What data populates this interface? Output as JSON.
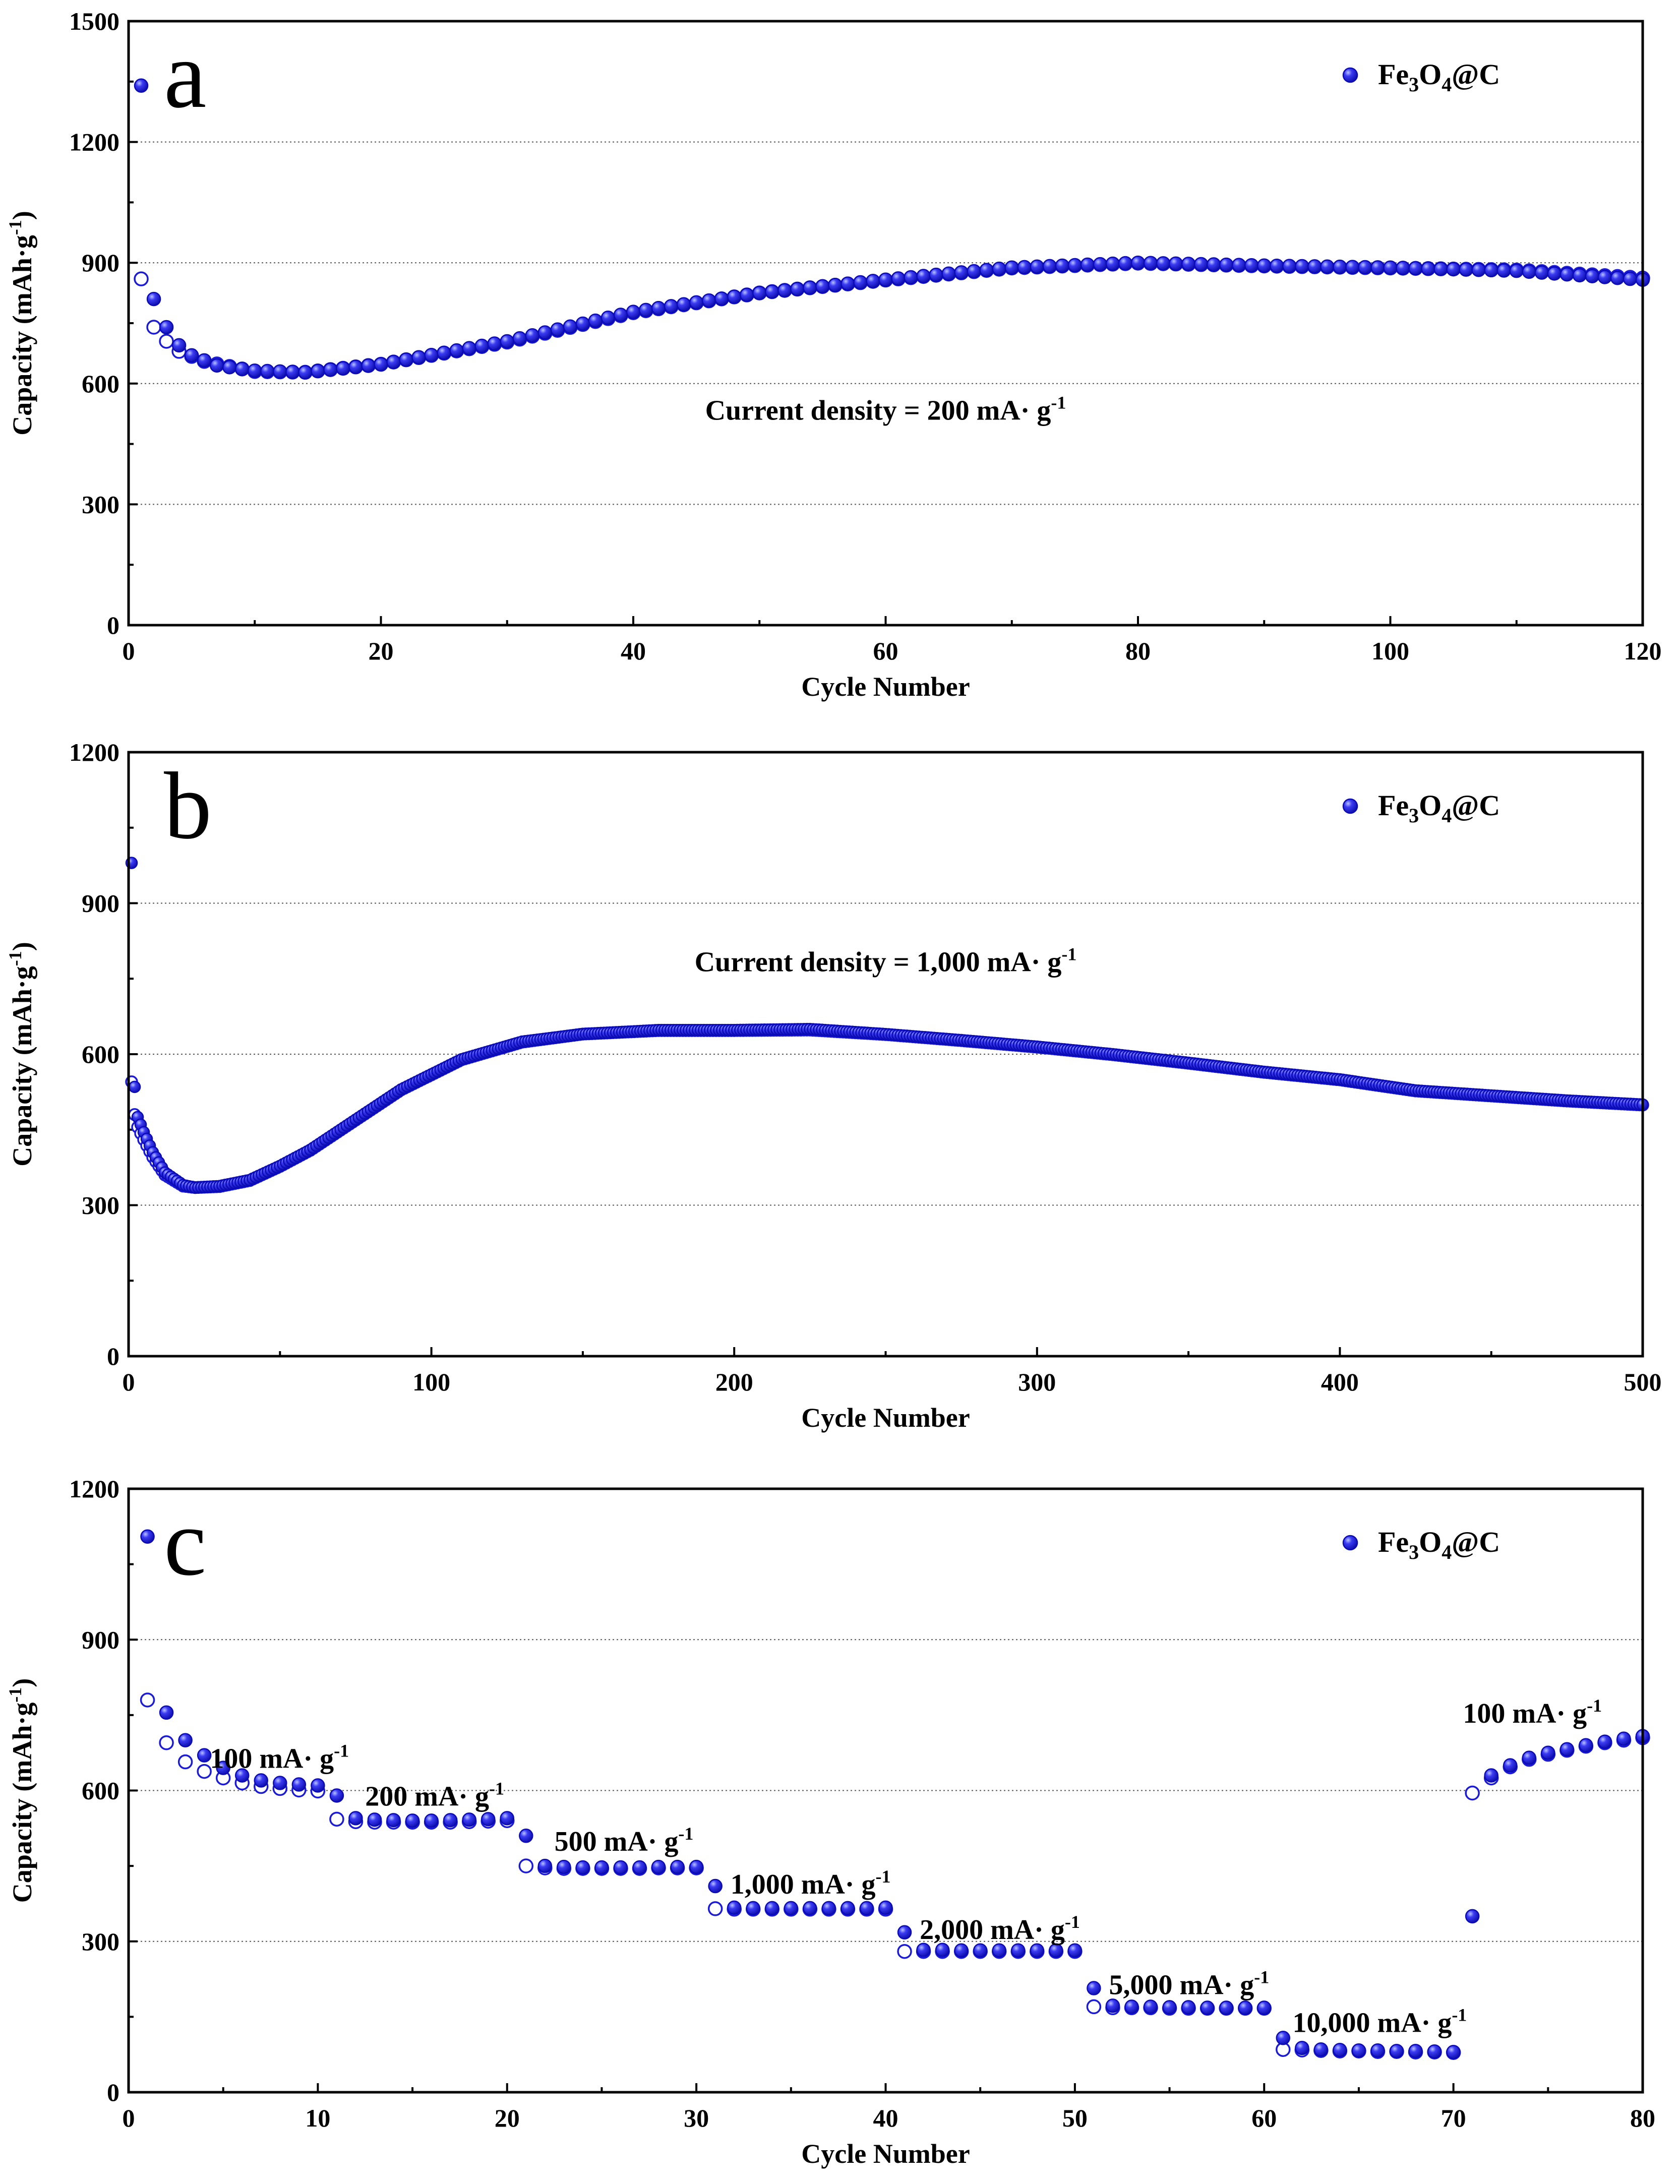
{
  "colors": {
    "marker_fill": "#2a2ae8",
    "marker_edge": "#0b0bb8",
    "marker_highlight": "#a9b6ff",
    "frame": "#000000",
    "grid": "#555555"
  },
  "chart_data": [
    {
      "type": "scatter",
      "panel_label": "a",
      "xlabel": "Cycle Number",
      "ylabel": "Capacity (mAh·g",
      "ylabel_exponent": "-1",
      "ylabel_close": ")",
      "xlim": [
        0,
        120
      ],
      "ylim": [
        0,
        1500
      ],
      "xticks": [
        0,
        20,
        40,
        60,
        80,
        100,
        120
      ],
      "xtick_labels": [
        "0",
        "20",
        "40",
        "60",
        "80",
        "100",
        "120"
      ],
      "yticks": [
        0,
        300,
        600,
        900,
        1200,
        1500
      ],
      "ytick_labels": [
        "0",
        "300",
        "600",
        "900",
        "1200",
        "1500"
      ],
      "grid_lines_y": [
        300,
        600,
        900,
        1200
      ],
      "legend": {
        "label": "Fe3O4@C",
        "parts": [
          "Fe",
          "3",
          "O",
          "4",
          "@C"
        ],
        "position": "top-right"
      },
      "annotations": [
        {
          "text": "Current density = 200 mA· g",
          "superscript": "-1",
          "at": [
            60,
            510
          ]
        }
      ],
      "series_generator": {
        "n_cycles": 120,
        "first_discharge": 1340,
        "first_charge": 860,
        "discharge_anchors": [
          [
            2,
            810
          ],
          [
            3,
            740
          ],
          [
            4,
            695
          ],
          [
            5,
            670
          ],
          [
            7,
            645
          ],
          [
            10,
            632
          ],
          [
            14,
            628
          ],
          [
            20,
            648
          ],
          [
            30,
            705
          ],
          [
            40,
            778
          ],
          [
            50,
            825
          ],
          [
            60,
            858
          ],
          [
            70,
            888
          ],
          [
            80,
            900
          ],
          [
            90,
            893
          ],
          [
            100,
            888
          ],
          [
            110,
            880
          ],
          [
            120,
            858
          ]
        ],
        "charge_anchors": [
          [
            2,
            740
          ],
          [
            3,
            705
          ],
          [
            4,
            680
          ],
          [
            6,
            655
          ],
          [
            10,
            630
          ],
          [
            14,
            628
          ],
          [
            20,
            648
          ],
          [
            30,
            703
          ],
          [
            40,
            776
          ],
          [
            50,
            825
          ],
          [
            60,
            857
          ],
          [
            70,
            887
          ],
          [
            80,
            899
          ],
          [
            90,
            892
          ],
          [
            100,
            887
          ],
          [
            110,
            882
          ],
          [
            120,
            862
          ]
        ]
      }
    },
    {
      "type": "scatter",
      "panel_label": "b",
      "xlabel": "Cycle Number",
      "ylabel": "Capacity (mAh·g",
      "ylabel_exponent": "-1",
      "ylabel_close": ")",
      "xlim": [
        0,
        500
      ],
      "ylim": [
        0,
        1200
      ],
      "xticks": [
        0,
        100,
        200,
        300,
        400,
        500
      ],
      "xtick_labels": [
        "0",
        "100",
        "200",
        "300",
        "400",
        "500"
      ],
      "yticks": [
        0,
        300,
        600,
        900,
        1200
      ],
      "ytick_labels": [
        "0",
        "300",
        "600",
        "900",
        "1200"
      ],
      "grid_lines_y": [
        300,
        600,
        900
      ],
      "legend": {
        "label": "Fe3O4@C",
        "parts": [
          "Fe",
          "3",
          "O",
          "4",
          "@C"
        ],
        "position": "top-right"
      },
      "annotations": [
        {
          "text": "Current density = 1,000 mA· g",
          "superscript": "-1",
          "at": [
            250,
            765
          ]
        }
      ],
      "series_generator": {
        "n_cycles": 500,
        "first_discharge": 980,
        "first_charge": 545,
        "discharge_anchors": [
          [
            2,
            535
          ],
          [
            3,
            475
          ],
          [
            5,
            445
          ],
          [
            8,
            405
          ],
          [
            12,
            365
          ],
          [
            18,
            340
          ],
          [
            22,
            335
          ],
          [
            30,
            338
          ],
          [
            40,
            350
          ],
          [
            50,
            378
          ],
          [
            60,
            410
          ],
          [
            75,
            470
          ],
          [
            90,
            530
          ],
          [
            110,
            590
          ],
          [
            130,
            625
          ],
          [
            150,
            640
          ],
          [
            175,
            648
          ],
          [
            200,
            648
          ],
          [
            225,
            650
          ],
          [
            250,
            640
          ],
          [
            275,
            628
          ],
          [
            300,
            615
          ],
          [
            325,
            600
          ],
          [
            350,
            583
          ],
          [
            375,
            565
          ],
          [
            400,
            550
          ],
          [
            425,
            528
          ],
          [
            450,
            518
          ],
          [
            475,
            508
          ],
          [
            500,
            500
          ]
        ],
        "charge_anchors": [
          [
            2,
            480
          ],
          [
            3,
            455
          ],
          [
            5,
            430
          ],
          [
            8,
            395
          ],
          [
            12,
            360
          ],
          [
            18,
            338
          ],
          [
            22,
            335
          ],
          [
            30,
            337
          ],
          [
            40,
            349
          ],
          [
            50,
            377
          ],
          [
            60,
            409
          ],
          [
            75,
            469
          ],
          [
            90,
            529
          ],
          [
            110,
            589
          ],
          [
            130,
            624
          ],
          [
            150,
            640
          ],
          [
            175,
            647
          ],
          [
            200,
            647
          ],
          [
            225,
            648
          ],
          [
            250,
            639
          ],
          [
            275,
            627
          ],
          [
            300,
            614
          ],
          [
            325,
            599
          ],
          [
            350,
            582
          ],
          [
            375,
            564
          ],
          [
            400,
            549
          ],
          [
            425,
            527
          ],
          [
            450,
            517
          ],
          [
            475,
            507
          ],
          [
            500,
            499
          ]
        ]
      }
    },
    {
      "type": "scatter",
      "panel_label": "c",
      "xlabel": "Cycle Number",
      "ylabel": "Capacity (mAh·g",
      "ylabel_exponent": "-1",
      "ylabel_close": ")",
      "xlim": [
        0,
        80
      ],
      "ylim": [
        0,
        1200
      ],
      "xticks": [
        0,
        10,
        20,
        30,
        40,
        50,
        60,
        70,
        80
      ],
      "xtick_labels": [
        "0",
        "10",
        "20",
        "30",
        "40",
        "50",
        "60",
        "70",
        "80"
      ],
      "yticks": [
        0,
        300,
        600,
        900,
        1200
      ],
      "ytick_labels": [
        "0",
        "300",
        "600",
        "900",
        "1200"
      ],
      "grid_lines_y": [
        300,
        600,
        900
      ],
      "legend": {
        "label": "Fe3O4@C",
        "parts": [
          "Fe",
          "3",
          "O",
          "4",
          "@C"
        ],
        "position": "top-right"
      },
      "annotations": [
        {
          "text": "100 mA· g",
          "superscript": "-1",
          "at": [
            4.3,
            645
          ]
        },
        {
          "text": "200 mA· g",
          "superscript": "-1",
          "at": [
            12.5,
            570
          ]
        },
        {
          "text": "500 mA· g",
          "superscript": "-1",
          "at": [
            22.5,
            480
          ]
        },
        {
          "text": "1,000 mA· g",
          "superscript": "-1",
          "at": [
            31.8,
            395
          ]
        },
        {
          "text": "2,000 mA· g",
          "superscript": "-1",
          "at": [
            41.8,
            305
          ]
        },
        {
          "text": "5,000 mA· g",
          "superscript": "-1",
          "at": [
            51.8,
            195
          ]
        },
        {
          "text": "10,000 mA· g",
          "superscript": "-1",
          "at": [
            61.5,
            120
          ]
        },
        {
          "text": "100 mA· g",
          "superscript": "-1",
          "at": [
            70.5,
            735
          ]
        }
      ],
      "discharge": [
        [
          1,
          1105
        ],
        [
          2,
          755
        ],
        [
          3,
          700
        ],
        [
          4,
          670
        ],
        [
          5,
          645
        ],
        [
          6,
          630
        ],
        [
          7,
          620
        ],
        [
          8,
          615
        ],
        [
          9,
          612
        ],
        [
          10,
          610
        ],
        [
          11,
          590
        ],
        [
          12,
          545
        ],
        [
          13,
          542
        ],
        [
          14,
          541
        ],
        [
          15,
          540
        ],
        [
          16,
          540
        ],
        [
          17,
          541
        ],
        [
          18,
          542
        ],
        [
          19,
          543
        ],
        [
          20,
          545
        ],
        [
          21,
          510
        ],
        [
          22,
          450
        ],
        [
          23,
          448
        ],
        [
          24,
          447
        ],
        [
          25,
          447
        ],
        [
          26,
          447
        ],
        [
          27,
          447
        ],
        [
          28,
          448
        ],
        [
          29,
          448
        ],
        [
          30,
          448
        ],
        [
          31,
          410
        ],
        [
          32,
          367
        ],
        [
          33,
          366
        ],
        [
          34,
          366
        ],
        [
          35,
          366
        ],
        [
          36,
          366
        ],
        [
          37,
          366
        ],
        [
          38,
          366
        ],
        [
          39,
          366
        ],
        [
          40,
          367
        ],
        [
          41,
          318
        ],
        [
          42,
          283
        ],
        [
          43,
          283
        ],
        [
          44,
          282
        ],
        [
          45,
          282
        ],
        [
          46,
          282
        ],
        [
          47,
          282
        ],
        [
          48,
          282
        ],
        [
          49,
          282
        ],
        [
          50,
          282
        ],
        [
          51,
          207
        ],
        [
          52,
          172
        ],
        [
          53,
          170
        ],
        [
          54,
          170
        ],
        [
          55,
          169
        ],
        [
          56,
          169
        ],
        [
          57,
          168
        ],
        [
          58,
          168
        ],
        [
          59,
          168
        ],
        [
          60,
          168
        ],
        [
          61,
          108
        ],
        [
          62,
          88
        ],
        [
          63,
          85
        ],
        [
          64,
          84
        ],
        [
          65,
          83
        ],
        [
          66,
          83
        ],
        [
          67,
          82
        ],
        [
          68,
          82
        ],
        [
          69,
          81
        ],
        [
          70,
          80
        ],
        [
          71,
          350
        ],
        [
          72,
          630
        ],
        [
          73,
          650
        ],
        [
          74,
          665
        ],
        [
          75,
          675
        ],
        [
          76,
          682
        ],
        [
          77,
          690
        ],
        [
          78,
          697
        ],
        [
          79,
          703
        ],
        [
          80,
          708
        ]
      ],
      "charge": [
        [
          1,
          780
        ],
        [
          2,
          695
        ],
        [
          3,
          657
        ],
        [
          4,
          638
        ],
        [
          5,
          625
        ],
        [
          6,
          615
        ],
        [
          7,
          608
        ],
        [
          8,
          604
        ],
        [
          9,
          601
        ],
        [
          10,
          599
        ],
        [
          11,
          543
        ],
        [
          12,
          538
        ],
        [
          13,
          537
        ],
        [
          14,
          537
        ],
        [
          15,
          537
        ],
        [
          16,
          537
        ],
        [
          17,
          537
        ],
        [
          18,
          538
        ],
        [
          19,
          539
        ],
        [
          20,
          540
        ],
        [
          21,
          450
        ],
        [
          22,
          446
        ],
        [
          23,
          445
        ],
        [
          24,
          445
        ],
        [
          25,
          445
        ],
        [
          26,
          445
        ],
        [
          27,
          445
        ],
        [
          28,
          446
        ],
        [
          29,
          446
        ],
        [
          30,
          446
        ],
        [
          31,
          365
        ],
        [
          32,
          364
        ],
        [
          33,
          364
        ],
        [
          34,
          364
        ],
        [
          35,
          364
        ],
        [
          36,
          364
        ],
        [
          37,
          364
        ],
        [
          38,
          364
        ],
        [
          39,
          364
        ],
        [
          40,
          364
        ],
        [
          41,
          280
        ],
        [
          42,
          280
        ],
        [
          43,
          280
        ],
        [
          44,
          280
        ],
        [
          45,
          280
        ],
        [
          46,
          280
        ],
        [
          47,
          280
        ],
        [
          48,
          280
        ],
        [
          49,
          280
        ],
        [
          50,
          280
        ],
        [
          51,
          170
        ],
        [
          52,
          168
        ],
        [
          53,
          168
        ],
        [
          54,
          168
        ],
        [
          55,
          167
        ],
        [
          56,
          167
        ],
        [
          57,
          167
        ],
        [
          58,
          167
        ],
        [
          59,
          167
        ],
        [
          60,
          167
        ],
        [
          61,
          85
        ],
        [
          62,
          84
        ],
        [
          63,
          83
        ],
        [
          64,
          82
        ],
        [
          65,
          82
        ],
        [
          66,
          81
        ],
        [
          67,
          81
        ],
        [
          68,
          80
        ],
        [
          69,
          80
        ],
        [
          70,
          79
        ],
        [
          71,
          595
        ],
        [
          72,
          625
        ],
        [
          73,
          647
        ],
        [
          74,
          662
        ],
        [
          75,
          672
        ],
        [
          76,
          680
        ],
        [
          77,
          688
        ],
        [
          78,
          695
        ],
        [
          79,
          700
        ],
        [
          80,
          705
        ]
      ]
    }
  ]
}
